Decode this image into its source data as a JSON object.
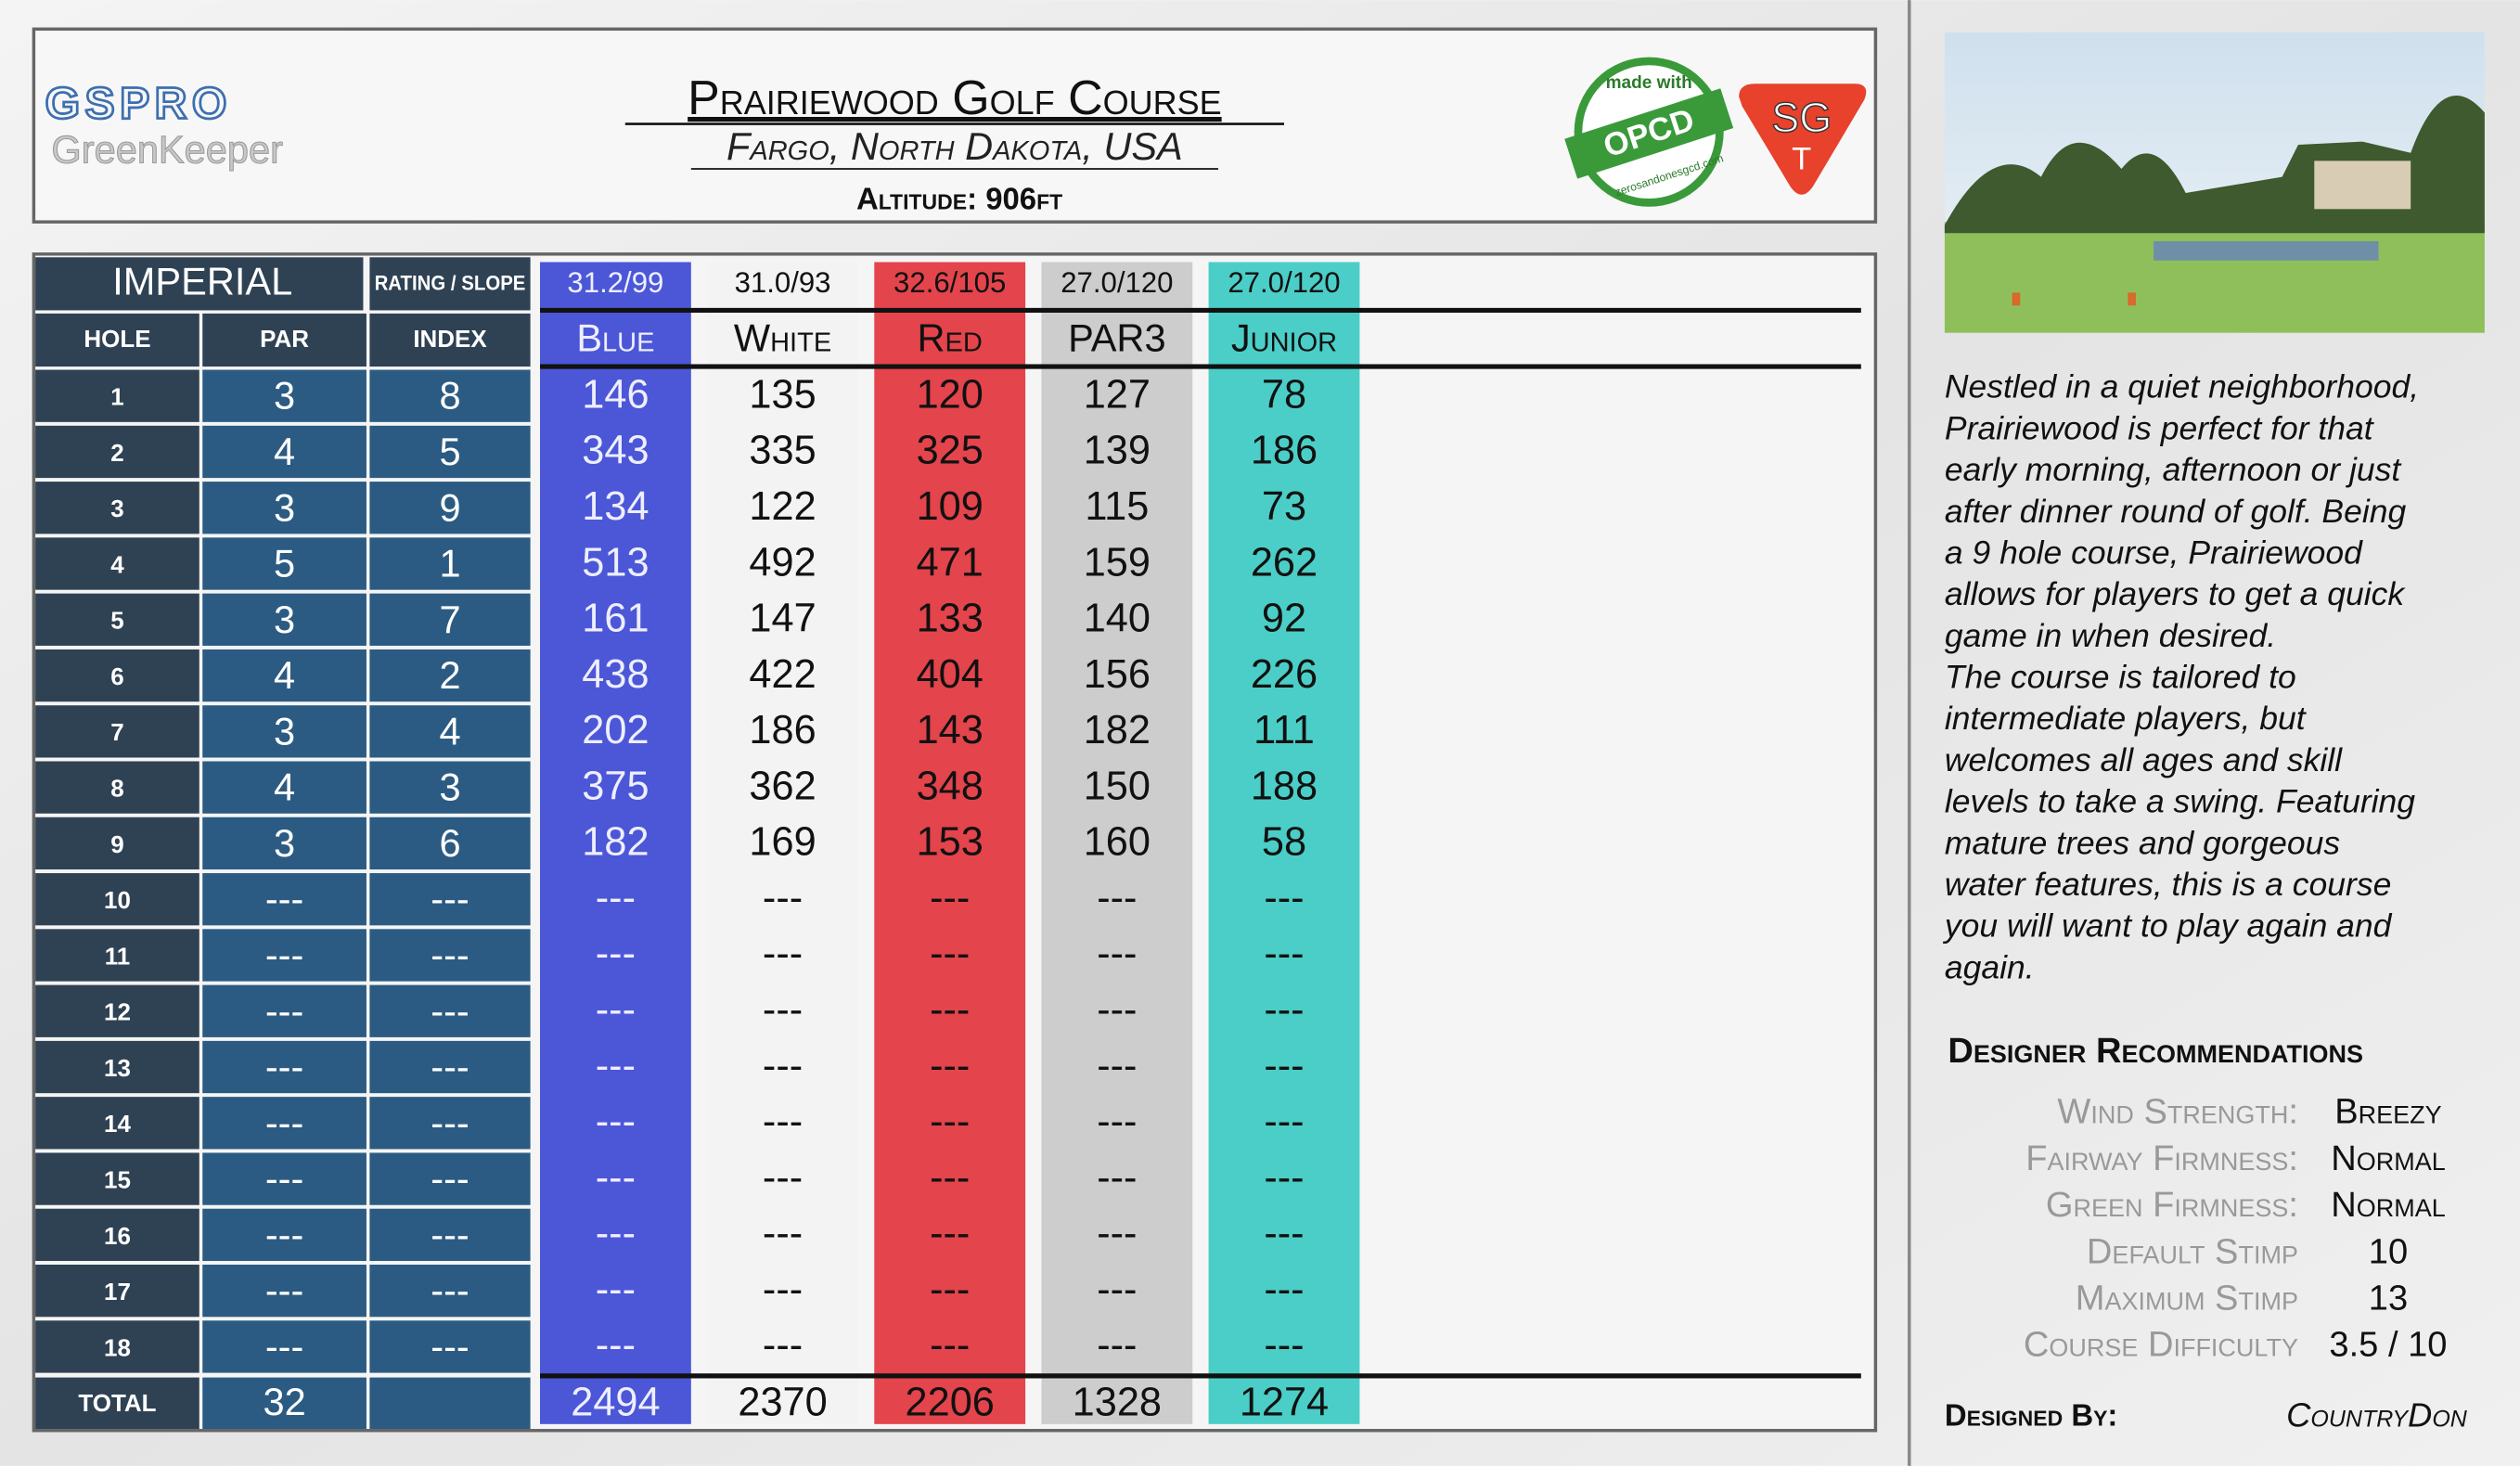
{
  "header": {
    "title": "Prairiewood Golf Course",
    "location": "Fargo, North Dakota, USA",
    "altitude": "Altitude: 906ft"
  },
  "logos": {
    "brand": "GSPRO",
    "product": "GreenKeeper",
    "badge_top": "made with",
    "badge": "OPCD",
    "badge_url": "zerosandonesgcd.com",
    "sgt": "SG",
    "sgt_t": "T"
  },
  "table": {
    "system": "IMPERIAL",
    "rating_header": "RATING / SLOPE",
    "hole_header": "HOLE",
    "par_header": "PAR",
    "index_header": "INDEX",
    "total_label": "TOTAL",
    "holes": [
      "1",
      "2",
      "3",
      "4",
      "5",
      "6",
      "7",
      "8",
      "9",
      "10",
      "11",
      "12",
      "13",
      "14",
      "15",
      "16",
      "17",
      "18"
    ],
    "par": [
      3,
      4,
      3,
      5,
      3,
      4,
      3,
      4,
      3,
      "---",
      "---",
      "---",
      "---",
      "---",
      "---",
      "---",
      "---",
      "---"
    ],
    "index": [
      8,
      5,
      9,
      1,
      7,
      2,
      4,
      3,
      6,
      "---",
      "---",
      "---",
      "---",
      "---",
      "---",
      "---",
      "---",
      "---"
    ],
    "par_total": 32,
    "tees": [
      {
        "name": "Blue",
        "rating": "31.2/99",
        "color": "#3c49d4",
        "yards": [
          146,
          343,
          134,
          513,
          161,
          438,
          202,
          375,
          182,
          "---",
          "---",
          "---",
          "---",
          "---",
          "---",
          "---",
          "---",
          "---"
        ],
        "total": 2494
      },
      {
        "name": "White",
        "rating": "31.0/93",
        "color": "#f2f2f2",
        "yards": [
          135,
          335,
          122,
          492,
          147,
          422,
          186,
          362,
          169,
          "---",
          "---",
          "---",
          "---",
          "---",
          "---",
          "---",
          "---",
          "---"
        ],
        "total": 2370
      },
      {
        "name": "Red",
        "rating": "32.6/105",
        "color": "#e2343c",
        "yards": [
          120,
          325,
          109,
          471,
          133,
          404,
          143,
          348,
          153,
          "---",
          "---",
          "---",
          "---",
          "---",
          "---",
          "---",
          "---",
          "---"
        ],
        "total": 2206
      },
      {
        "name": "PAR3",
        "rating": "27.0/120",
        "color": "#c9c9c9",
        "yards": [
          127,
          139,
          115,
          159,
          140,
          156,
          182,
          150,
          160,
          "---",
          "---",
          "---",
          "---",
          "---",
          "---",
          "---",
          "---",
          "---"
        ],
        "total": 1328
      },
      {
        "name": "Junior",
        "rating": "27.0/120",
        "color": "#3ccac2",
        "yards": [
          78,
          186,
          73,
          262,
          92,
          226,
          111,
          188,
          58,
          "---",
          "---",
          "---",
          "---",
          "---",
          "---",
          "---",
          "---",
          "---"
        ],
        "total": 1274
      }
    ]
  },
  "description": [
    "Nestled in a quiet neighborhood,",
    "Prairiewood is perfect for that",
    "early morning, afternoon or just",
    "after dinner round of golf. Being",
    "a 9 hole course, Prairiewood",
    "allows for players to get a quick",
    "game in when desired.",
    "The course is tailored to",
    "intermediate players, but",
    "welcomes all ages and skill",
    "levels to take a swing. Featuring",
    "mature trees and gorgeous",
    "water features, this is a course",
    "you will want to play again and",
    "again."
  ],
  "recommendations": {
    "title": "Designer Recommendations",
    "items": [
      {
        "label": "Wind Strength:",
        "value": "Breezy"
      },
      {
        "label": "Fairway Firmness:",
        "value": "Normal"
      },
      {
        "label": "Green Firmness:",
        "value": "Normal"
      },
      {
        "label": "Default Stimp",
        "value": 10
      },
      {
        "label": "Maximum Stimp",
        "value": 13
      },
      {
        "label": "Course Difficulty",
        "value": "3.5 / 10"
      }
    ]
  },
  "designer": {
    "label": "Designed By:",
    "name": "CountryDon"
  }
}
